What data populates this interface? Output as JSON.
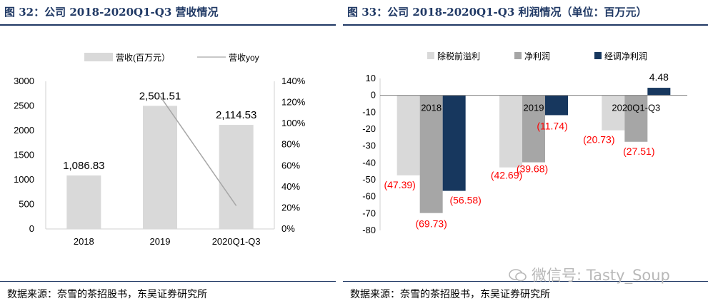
{
  "left": {
    "title": "图 32：公司 2018-2020Q1-Q3 营收情况",
    "source": "数据来源：奈雪的茶招股书，东吴证券研究所"
  },
  "right": {
    "title": "图 33：公司 2018-2020Q1-Q3 利润情况（单位：百万元）",
    "source": "数据来源：奈雪的茶招股书，东吴证券研究所"
  },
  "watermark": {
    "text": "微信号: Tasty_Soup",
    "icon": "wechat-icon"
  },
  "chart_data": [
    {
      "type": "bar",
      "categories": [
        "2018",
        "2019",
        "2020Q1-Q3"
      ],
      "series": [
        {
          "name": "营收(百万元）",
          "values": [
            1086.83,
            2501.51,
            2114.53
          ],
          "color": "#d9d9d9",
          "axis": "left",
          "labels": [
            "1,086.83",
            "2,501.51",
            "2,114.53"
          ]
        },
        {
          "name": "营收yoy",
          "type": "line",
          "axis": "right",
          "points": [
            [
              1,
              1.26
            ],
            [
              2,
              0.22
            ]
          ],
          "color": "#a6a6a6"
        }
      ],
      "ylim": [
        0,
        3000
      ],
      "yticks": [
        "0",
        "500",
        "1000",
        "1500",
        "2000",
        "2500",
        "3000"
      ],
      "y2lim": [
        0,
        1.4
      ],
      "y2ticks": [
        "0%",
        "20%",
        "40%",
        "60%",
        "80%",
        "100%",
        "120%",
        "140%"
      ],
      "legend": "top"
    },
    {
      "type": "bar",
      "categories": [
        "2018",
        "2019",
        "2020Q1-Q3"
      ],
      "series": [
        {
          "name": "除税前溢利",
          "values": [
            -47.39,
            -42.69,
            -20.73
          ],
          "color": "#d9d9d9",
          "labels": [
            "(47.39)",
            "(42.69)",
            "(20.73)"
          ]
        },
        {
          "name": "净利润",
          "values": [
            -69.73,
            -39.68,
            -27.51
          ],
          "color": "#a6a6a6",
          "labels": [
            "(69.73)",
            "(39.68)",
            "(27.51)"
          ]
        },
        {
          "name": "经调净利润",
          "values": [
            -56.58,
            -11.74,
            4.48
          ],
          "color": "#17375e",
          "labels": [
            "(56.58)",
            "(11.74)",
            "4.48"
          ]
        }
      ],
      "ylim": [
        -80,
        10
      ],
      "yticks": [
        "10",
        "0",
        "-10",
        "-20",
        "-30",
        "-40",
        "-50",
        "-60",
        "-70",
        "-80"
      ],
      "label_colors": {
        "negative": "#ff0000",
        "positive": "#000000"
      },
      "legend": "top"
    }
  ]
}
